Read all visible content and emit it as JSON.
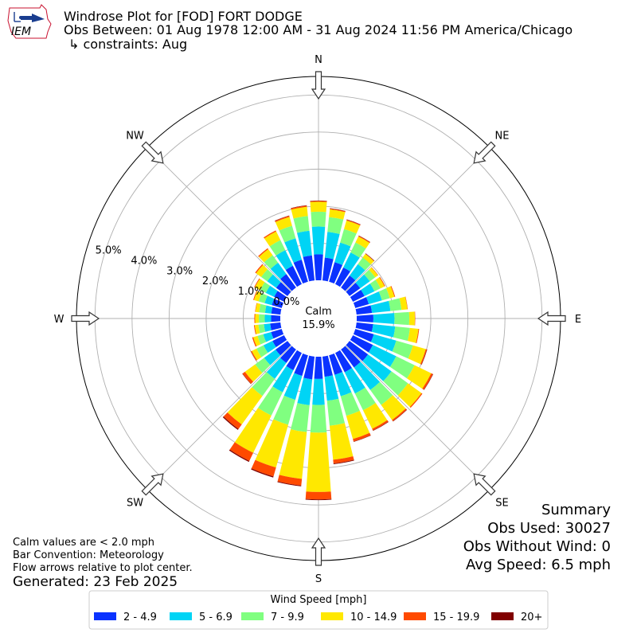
{
  "header": {
    "title": "Windrose Plot for [FOD] FORT DODGE",
    "obs_between": "Obs Between: 01 Aug 1978 12:00 AM - 31 Aug 2024 11:56 PM America/Chicago",
    "constraints": "↳ constraints: Aug",
    "logo_text": "IEM"
  },
  "calm": {
    "label": "Calm",
    "value": "15.9%"
  },
  "notes": {
    "calm_def": "Calm values are < 2.0 mph",
    "bar_convention": "Bar Convention: Meteorology",
    "flow_arrows": "Flow arrows relative to plot center.",
    "generated": "Generated: 23 Feb 2025"
  },
  "summary": {
    "title": "Summary",
    "obs_used": "Obs Used: 30027",
    "obs_without_wind": "Obs Without Wind: 0",
    "avg_speed": "Avg Speed: 6.5 mph"
  },
  "legend": {
    "title": "Wind Speed [mph]",
    "items": [
      {
        "label": "2 - 4.9",
        "color": "#0a32ff"
      },
      {
        "label": "5 - 6.9",
        "color": "#00d4f5"
      },
      {
        "label": "7 - 9.9",
        "color": "#80ff80"
      },
      {
        "label": "10 - 14.9",
        "color": "#ffe800"
      },
      {
        "label": "15 - 19.9",
        "color": "#ff4a00"
      },
      {
        "label": "20+",
        "color": "#800000"
      }
    ]
  },
  "chart_data": {
    "type": "windrose",
    "bar_convention": "meteorology",
    "calm_percent": 15.9,
    "radial_unit": "%",
    "radial_ticks": [
      "0.0%",
      "1.0%",
      "2.0%",
      "3.0%",
      "4.0%",
      "5.0%"
    ],
    "radial_max": 5.5,
    "compass_labels": [
      {
        "label": "N",
        "angle": 0
      },
      {
        "label": "NE",
        "angle": 45
      },
      {
        "label": "E",
        "angle": 90
      },
      {
        "label": "SE",
        "angle": 135
      },
      {
        "label": "S",
        "angle": 180
      },
      {
        "label": "SW",
        "angle": 225
      },
      {
        "label": "W",
        "angle": 270
      },
      {
        "label": "NW",
        "angle": 315
      }
    ],
    "bins": [
      "2 - 4.9",
      "5 - 6.9",
      "7 - 9.9",
      "10 - 14.9",
      "15 - 19.9",
      "20+"
    ],
    "colors": [
      "#0a32ff",
      "#00d4f5",
      "#80ff80",
      "#ffe800",
      "#ff4a00",
      "#800000"
    ],
    "directions": [
      0,
      10,
      20,
      30,
      40,
      50,
      60,
      70,
      80,
      90,
      100,
      110,
      120,
      130,
      140,
      150,
      160,
      170,
      180,
      190,
      200,
      210,
      220,
      230,
      240,
      250,
      260,
      270,
      280,
      290,
      300,
      310,
      320,
      330,
      340,
      350
    ],
    "cumulative": [
      [
        0.7,
        1.45,
        1.85,
        2.12,
        2.14,
        2.15
      ],
      [
        0.62,
        1.32,
        1.72,
        1.93,
        1.95,
        1.96
      ],
      [
        0.55,
        1.1,
        1.48,
        1.72,
        1.74,
        1.75
      ],
      [
        0.5,
        0.95,
        1.25,
        1.43,
        1.45,
        1.46
      ],
      [
        0.4,
        0.78,
        1.0,
        1.12,
        1.13,
        1.14
      ],
      [
        0.36,
        0.68,
        0.86,
        0.95,
        0.96,
        0.96
      ],
      [
        0.35,
        0.65,
        0.83,
        0.95,
        0.97,
        0.97
      ],
      [
        0.38,
        0.75,
        0.97,
        1.1,
        1.12,
        1.12
      ],
      [
        0.42,
        0.92,
        1.22,
        1.38,
        1.39,
        1.39
      ],
      [
        0.45,
        1.02,
        1.42,
        1.57,
        1.58,
        1.58
      ],
      [
        0.45,
        1.05,
        1.45,
        1.68,
        1.7,
        1.7
      ],
      [
        0.52,
        1.15,
        1.62,
        1.98,
        2.01,
        2.02
      ],
      [
        0.6,
        1.3,
        1.85,
        2.35,
        2.4,
        2.41
      ],
      [
        0.62,
        1.4,
        1.95,
        2.4,
        2.43,
        2.43
      ],
      [
        0.6,
        1.35,
        1.85,
        2.35,
        2.39,
        2.4
      ],
      [
        0.58,
        1.22,
        1.72,
        2.28,
        2.33,
        2.34
      ],
      [
        0.55,
        1.15,
        1.7,
        2.35,
        2.42,
        2.43
      ],
      [
        0.55,
        1.2,
        1.88,
        2.8,
        2.9,
        2.92
      ],
      [
        0.6,
        1.3,
        2.05,
        3.65,
        3.85,
        3.87
      ],
      [
        0.62,
        1.32,
        2.05,
        3.32,
        3.5,
        3.52
      ],
      [
        0.58,
        1.25,
        1.95,
        3.15,
        3.4,
        3.43
      ],
      [
        0.52,
        1.18,
        1.88,
        3.0,
        3.24,
        3.27
      ],
      [
        0.45,
        0.98,
        1.55,
        2.5,
        2.65,
        2.68
      ],
      [
        0.4,
        0.78,
        1.08,
        1.42,
        1.5,
        1.51
      ],
      [
        0.35,
        0.62,
        0.83,
        0.97,
        1.0,
        1.0
      ],
      [
        0.3,
        0.52,
        0.68,
        0.8,
        0.83,
        0.83
      ],
      [
        0.28,
        0.45,
        0.6,
        0.7,
        0.72,
        0.72
      ],
      [
        0.25,
        0.42,
        0.58,
        0.68,
        0.7,
        0.7
      ],
      [
        0.25,
        0.42,
        0.58,
        0.68,
        0.69,
        0.69
      ],
      [
        0.28,
        0.48,
        0.65,
        0.78,
        0.8,
        0.8
      ],
      [
        0.3,
        0.55,
        0.72,
        0.88,
        0.9,
        0.9
      ],
      [
        0.38,
        0.68,
        0.88,
        1.05,
        1.08,
        1.08
      ],
      [
        0.45,
        0.83,
        1.08,
        1.28,
        1.31,
        1.31
      ],
      [
        0.55,
        1.02,
        1.32,
        1.58,
        1.61,
        1.61
      ],
      [
        0.62,
        1.22,
        1.57,
        1.82,
        1.85,
        1.86
      ],
      [
        0.68,
        1.35,
        1.75,
        2.0,
        2.03,
        2.04
      ]
    ]
  }
}
